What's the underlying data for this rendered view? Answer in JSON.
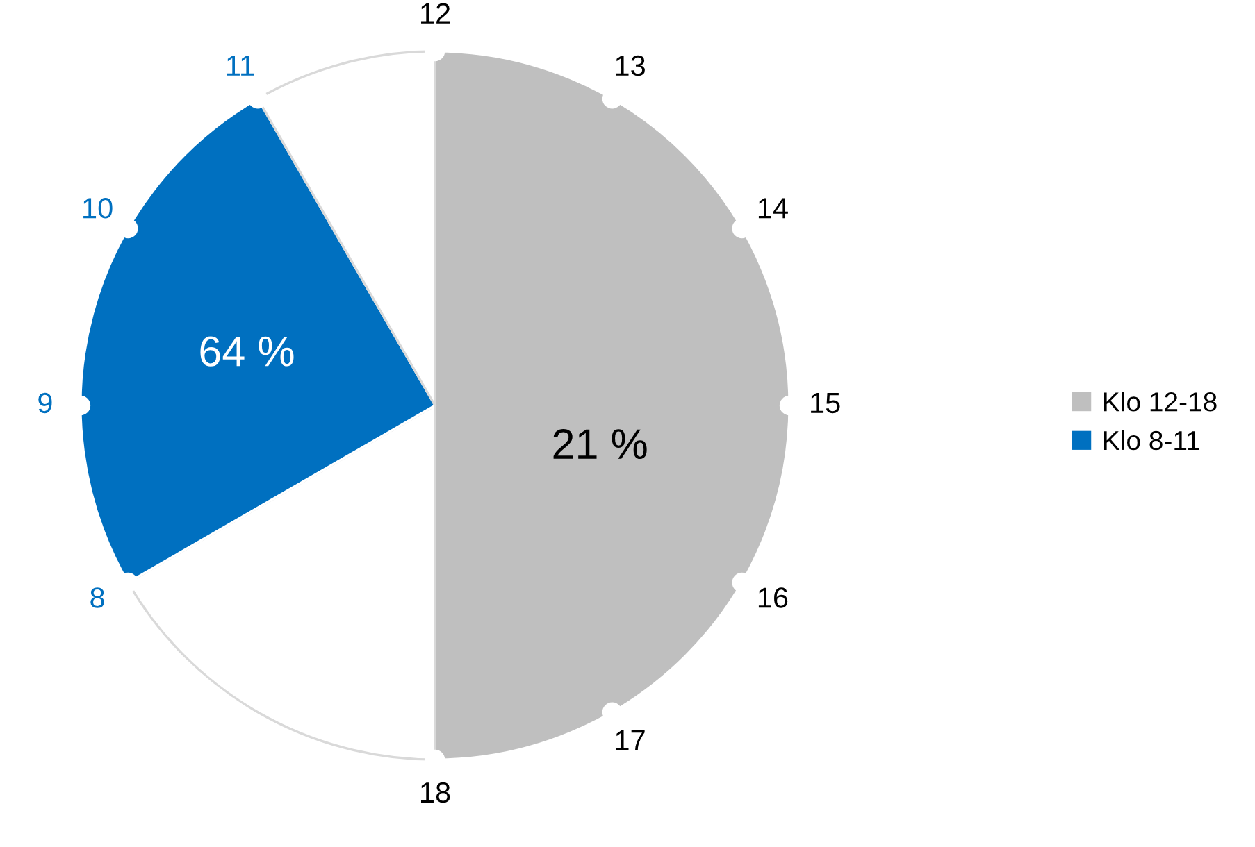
{
  "chart_data": {
    "type": "pie",
    "categories": [
      "Klo 12-18",
      null,
      "Klo 8-11",
      null
    ],
    "values": [
      50,
      16.667,
      25,
      8.333
    ],
    "colors": [
      "#bfbfbf",
      "#ffffff",
      "#0070c0",
      "#ffffff"
    ],
    "annotations": [
      "21 %",
      "64 %",
      "8",
      "9",
      "10",
      "11",
      "12",
      "13",
      "14",
      "15",
      "16",
      "17",
      "18"
    ],
    "legend": "right"
  }
}
